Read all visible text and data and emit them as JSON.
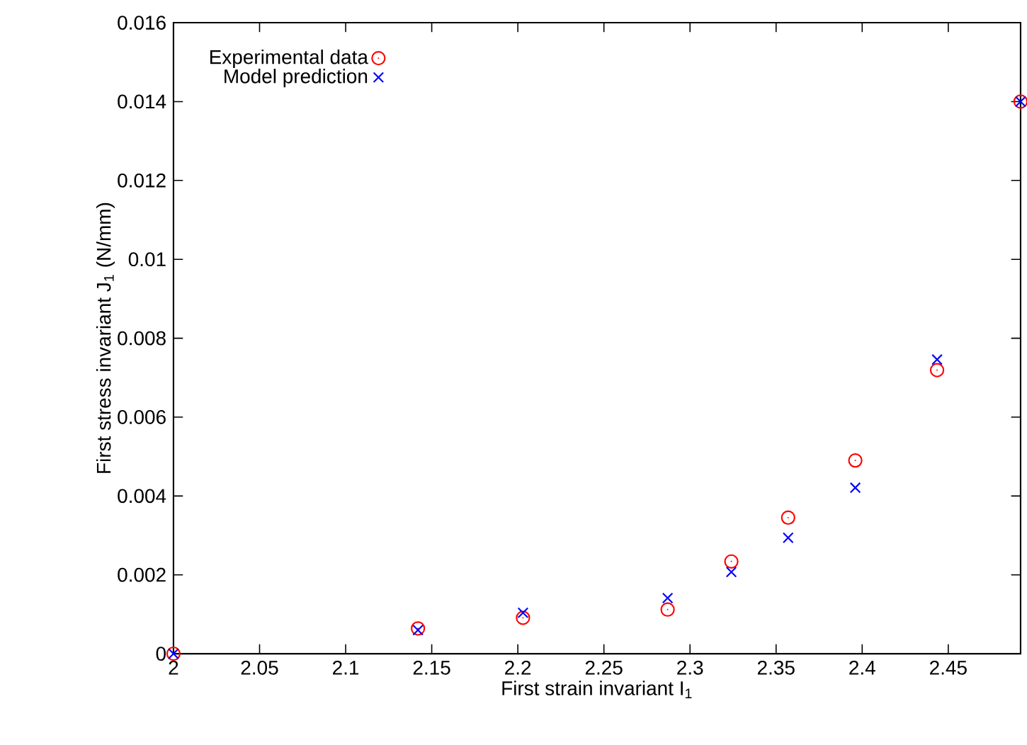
{
  "chart_data": {
    "type": "scatter",
    "xlabel": "First strain invariant I$_{1}$",
    "ylabel": "First stress invariant J$_{1}$ (N/mm)",
    "xlim": [
      2,
      2.492
    ],
    "ylim": [
      0,
      0.016
    ],
    "xticks": [
      2,
      2.05,
      2.1,
      2.15,
      2.2,
      2.25,
      2.3,
      2.35,
      2.4,
      2.45
    ],
    "yticks": [
      0,
      0.002,
      0.004,
      0.006,
      0.008,
      0.01,
      0.012,
      0.014,
      0.016
    ],
    "grid": false,
    "legend": "top left",
    "series": [
      {
        "name": "Experimental data",
        "color": "#ff0000",
        "marker": "circle",
        "x": [
          2,
          2.142,
          2.203,
          2.287,
          2.324,
          2.357,
          2.396,
          2.4435,
          2.492
        ],
        "values": [
          0,
          0.00064,
          0.00091,
          0.00112,
          0.00234,
          0.00345,
          0.0049,
          0.00719,
          0.014
        ]
      },
      {
        "name": "Model prediction",
        "color": "#0000ff",
        "marker": "cross",
        "x": [
          2,
          2.142,
          2.203,
          2.287,
          2.324,
          2.357,
          2.396,
          2.4435,
          2.492
        ],
        "values": [
          0,
          0.0006,
          0.00104,
          0.00141,
          0.00207,
          0.00294,
          0.00421,
          0.00746,
          0.014
        ]
      }
    ]
  }
}
